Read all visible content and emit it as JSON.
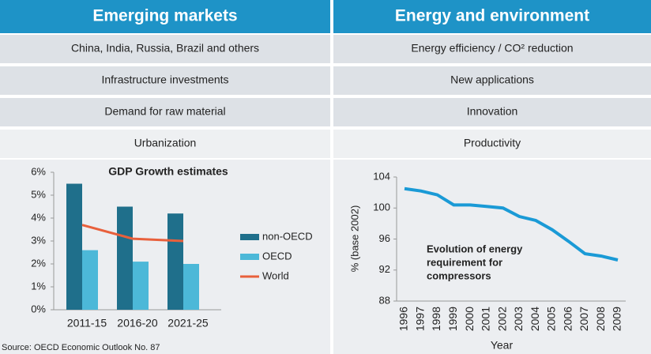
{
  "table": {
    "header": [
      "Emerging markets",
      "Energy and environment"
    ],
    "rows": [
      [
        "China, India, Russia, Brazil and others",
        "Energy efficiency / CO² reduction"
      ],
      [
        "Infrastructure investments",
        "New applications"
      ],
      [
        "Demand for raw material",
        "Innovation"
      ],
      [
        "Urbanization",
        "Productivity"
      ]
    ]
  },
  "chart_data": [
    {
      "type": "bar",
      "title": "GDP Growth estimates",
      "categories": [
        "2011-15",
        "2016-20",
        "2021-25"
      ],
      "series": [
        {
          "name": "non-OECD",
          "color": "#1f6f8b",
          "values": [
            5.5,
            4.5,
            4.2
          ]
        },
        {
          "name": "OECD",
          "color": "#4cb8d8",
          "values": [
            2.6,
            2.1,
            2.0
          ]
        },
        {
          "name": "World",
          "color": "#e8603c",
          "type": "line",
          "values": [
            3.7,
            3.1,
            3.0
          ]
        }
      ],
      "ylim": [
        0,
        6
      ],
      "yticks": [
        {
          "value": 0,
          "label": "0%"
        },
        {
          "value": 1,
          "label": "1%"
        },
        {
          "value": 2,
          "label": "2%"
        },
        {
          "value": 3,
          "label": "3%"
        },
        {
          "value": 4,
          "label": "4%"
        },
        {
          "value": 5,
          "label": "5%"
        },
        {
          "value": 6,
          "label": "6%"
        }
      ],
      "legend": "right"
    },
    {
      "type": "line",
      "ylabel": "% (base 2002)",
      "xlabel": "Year",
      "annotation": [
        "Evolution of energy",
        "requirement for",
        "compressors"
      ],
      "categories": [
        "1996",
        "1997",
        "1998",
        "1999",
        "2000",
        "2001",
        "2002",
        "2003",
        "2004",
        "2005",
        "2006",
        "2007",
        "2008",
        "2009"
      ],
      "series": [
        {
          "name": "Energy requirement",
          "color": "#1a9ad6",
          "values": [
            102.5,
            102.2,
            101.7,
            100.4,
            100.4,
            100.2,
            100.0,
            98.9,
            98.4,
            97.2,
            95.7,
            94.1,
            93.8,
            93.3
          ]
        }
      ],
      "ylim": [
        88,
        104
      ],
      "yticks": [
        88,
        92,
        96,
        100,
        104
      ]
    }
  ],
  "source": "Source: OECD Economic Outlook No. 87"
}
